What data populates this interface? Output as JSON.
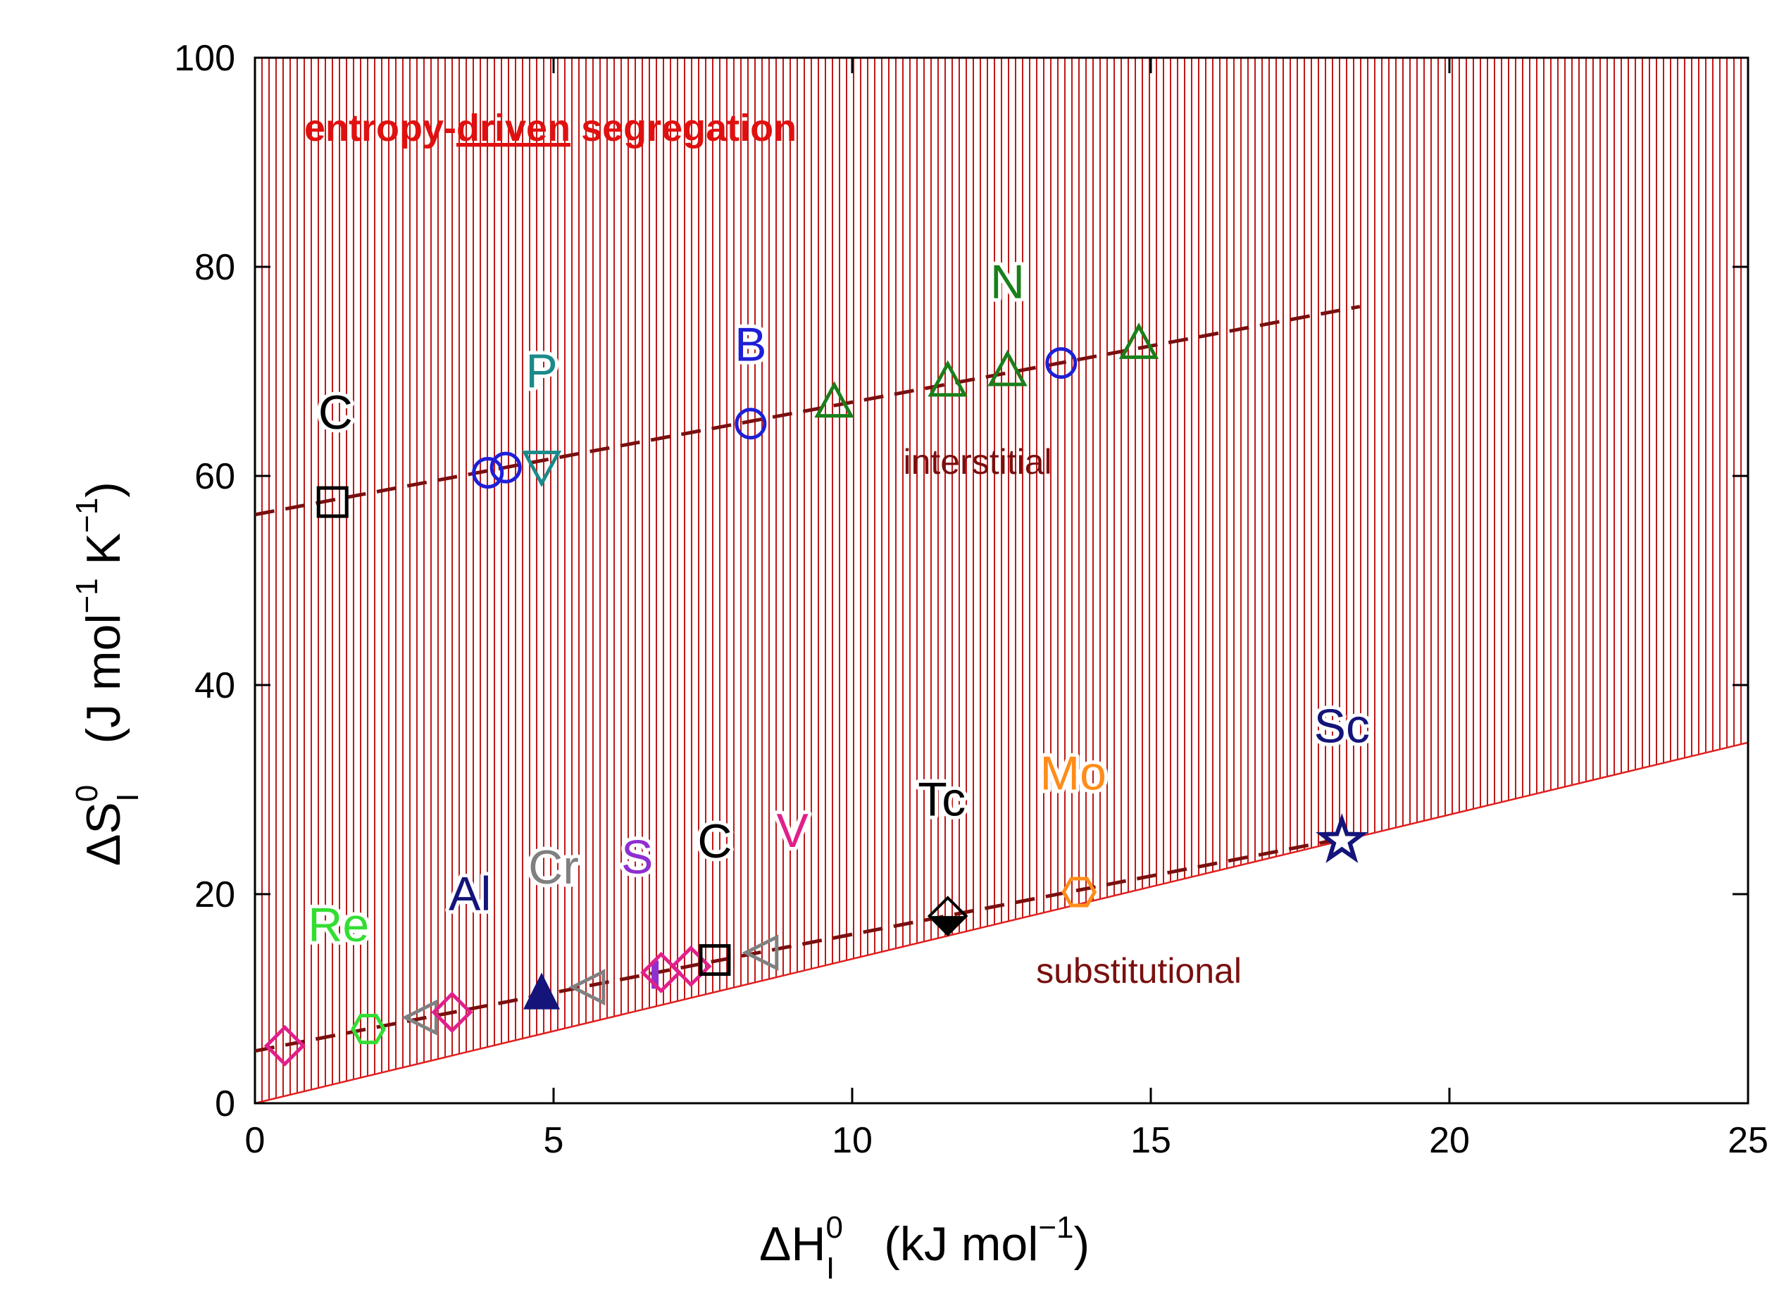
{
  "chart_data": {
    "type": "scatter",
    "title": "",
    "xlim": [
      0,
      25
    ],
    "ylim": [
      0,
      100
    ],
    "x_ticks": [
      {
        "value": 0,
        "label": "0"
      },
      {
        "value": 5,
        "label": "5"
      },
      {
        "value": 10,
        "label": "10"
      },
      {
        "value": 15,
        "label": "15"
      },
      {
        "value": 20,
        "label": "20"
      },
      {
        "value": 25,
        "label": "25"
      }
    ],
    "y_ticks": [
      {
        "value": 0,
        "label": "0"
      },
      {
        "value": 20,
        "label": "20"
      },
      {
        "value": 40,
        "label": "40"
      },
      {
        "value": 60,
        "label": "60"
      },
      {
        "value": 80,
        "label": "80"
      },
      {
        "value": 100,
        "label": "100"
      }
    ],
    "xlabel": {
      "symbol": "ΔH",
      "sup": "0",
      "sub": "I",
      "unit_pre": "(kJ mol",
      "unit_exp": "−1",
      "unit_post": ")"
    },
    "ylabel": {
      "symbol": "ΔS",
      "sup": "0",
      "sub": "I",
      "unit_a": "(J mol",
      "unit_exp1": "−1",
      "unit_b": " K",
      "unit_exp2": "−1",
      "unit_c": ")"
    },
    "region_label": {
      "pre": "entropy-",
      "underlined": "driven",
      "post": " segregation"
    },
    "boundary_line": {
      "x": [
        0,
        25
      ],
      "y": [
        0,
        34.5
      ]
    },
    "trend_lines": [
      {
        "label": "interstitial",
        "x": [
          0,
          18.5
        ],
        "y": [
          56.3,
          76.2
        ],
        "label_x": 12.1,
        "label_y": 60.2
      },
      {
        "label": "substitutional",
        "x": [
          0,
          18.2
        ],
        "y": [
          5.0,
          25.3
        ],
        "label_x": 14.8,
        "label_y": 11.5
      }
    ],
    "series": [
      {
        "element": "C",
        "marker": "square",
        "color": "#000000",
        "label_x": 1.35,
        "label_y": 64.5,
        "points": [
          {
            "x": 1.3,
            "y": 57.5
          }
        ]
      },
      {
        "element": "B",
        "marker": "circle",
        "color": "#1f1fd6",
        "label_x": 8.3,
        "label_y": 71.0,
        "points": [
          {
            "x": 3.9,
            "y": 60.3
          },
          {
            "x": 4.2,
            "y": 60.8
          },
          {
            "x": 8.3,
            "y": 65.0
          },
          {
            "x": 13.5,
            "y": 70.8
          }
        ]
      },
      {
        "element": "P",
        "marker": "triangle-down",
        "color": "#1a8a8a",
        "label_x": 4.8,
        "label_y": 68.5,
        "points": [
          {
            "x": 4.8,
            "y": 60.9
          }
        ]
      },
      {
        "element": "N",
        "marker": "triangle-up",
        "color": "#1a7f1a",
        "label_x": 12.6,
        "label_y": 77.0,
        "points": [
          {
            "x": 9.7,
            "y": 67.1
          },
          {
            "x": 11.6,
            "y": 69.1
          },
          {
            "x": 12.6,
            "y": 70.1
          },
          {
            "x": 14.8,
            "y": 72.7
          }
        ]
      },
      {
        "element": "Re",
        "marker": "hexagon",
        "color": "#33dd33",
        "label_x": 1.4,
        "label_y": 15.5,
        "points": [
          {
            "x": 1.9,
            "y": 7.1
          }
        ]
      },
      {
        "element": "Al",
        "marker": "triangle-filled",
        "color": "#14147a",
        "label_x": 3.6,
        "label_y": 18.5,
        "points": [
          {
            "x": 4.8,
            "y": 10.5
          }
        ]
      },
      {
        "element": "Cr",
        "marker": "triangle-left",
        "color": "#808080",
        "label_x": 5.0,
        "label_y": 21.0,
        "points": [
          {
            "x": 2.8,
            "y": 8.2
          },
          {
            "x": 5.6,
            "y": 11.1
          },
          {
            "x": 8.5,
            "y": 14.4
          }
        ]
      },
      {
        "element": "S",
        "marker": "bar",
        "color": "#8e2fd0",
        "label_x": 6.4,
        "label_y": 22.0,
        "points": [
          {
            "x": 6.7,
            "y": 12.3
          }
        ]
      },
      {
        "element": "V",
        "marker": "diamond",
        "color": "#e0208a",
        "label_x": 9.0,
        "label_y": 24.5,
        "points": [
          {
            "x": 0.5,
            "y": 5.5
          },
          {
            "x": 3.3,
            "y": 8.7
          },
          {
            "x": 6.8,
            "y": 12.5
          },
          {
            "x": 7.3,
            "y": 13.1
          }
        ]
      },
      {
        "element": "C",
        "marker": "square",
        "color": "#000000",
        "label_x": 7.7,
        "label_y": 23.5,
        "points": [
          {
            "x": 7.7,
            "y": 13.7
          }
        ]
      },
      {
        "element": "Tc",
        "marker": "diamond-half",
        "color": "#000000",
        "label_x": 11.5,
        "label_y": 27.5,
        "points": [
          {
            "x": 11.6,
            "y": 17.9
          }
        ]
      },
      {
        "element": "Mo",
        "marker": "hexagon",
        "color": "#ff8c1a",
        "label_x": 13.7,
        "label_y": 30.0,
        "points": [
          {
            "x": 13.8,
            "y": 20.2
          }
        ]
      },
      {
        "element": "Sc",
        "marker": "star",
        "color": "#14147a",
        "label_x": 18.2,
        "label_y": 34.5,
        "points": [
          {
            "x": 18.2,
            "y": 25.1
          }
        ]
      }
    ]
  }
}
